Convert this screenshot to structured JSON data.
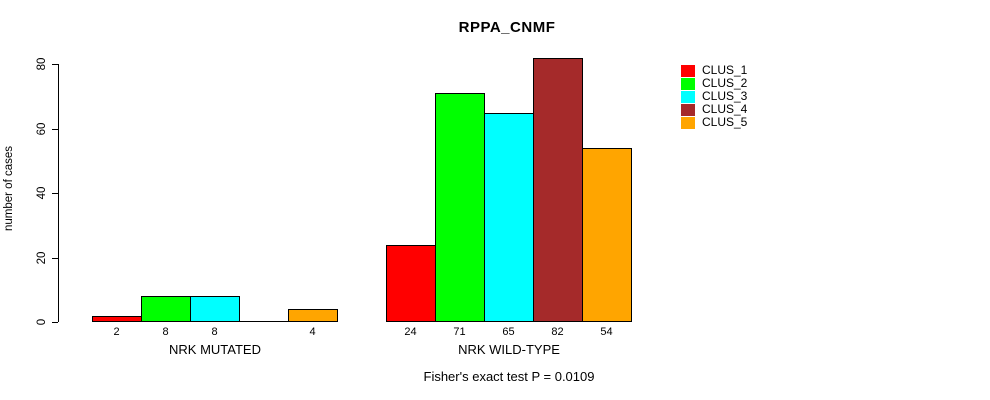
{
  "chart_data": {
    "type": "bar",
    "title": "RPPA_CNMF",
    "xlabel": "",
    "ylabel": "number of cases",
    "ylim": [
      0,
      80
    ],
    "yticks": [
      0,
      20,
      40,
      60,
      80
    ],
    "grid": false,
    "legend_position": "right",
    "categories": [
      {
        "label": "NRK MUTATED",
        "value_labels": [
          "2",
          "8",
          "8",
          "",
          "4"
        ]
      },
      {
        "label": "NRK WILD-TYPE",
        "value_labels": [
          "24",
          "71",
          "65",
          "82",
          "54"
        ]
      }
    ],
    "series": [
      {
        "name": "CLUS_1",
        "color": "#FF0000",
        "values": [
          2,
          24
        ]
      },
      {
        "name": "CLUS_2",
        "color": "#00FF00",
        "values": [
          8,
          71
        ]
      },
      {
        "name": "CLUS_3",
        "color": "#00FFFF",
        "values": [
          8,
          65
        ]
      },
      {
        "name": "CLUS_4",
        "color": "#A52A2A",
        "values": [
          0,
          82
        ]
      },
      {
        "name": "CLUS_5",
        "color": "#FFA500",
        "values": [
          4,
          54
        ]
      }
    ],
    "annotation": "Fisher's exact test P = 0.0109"
  }
}
